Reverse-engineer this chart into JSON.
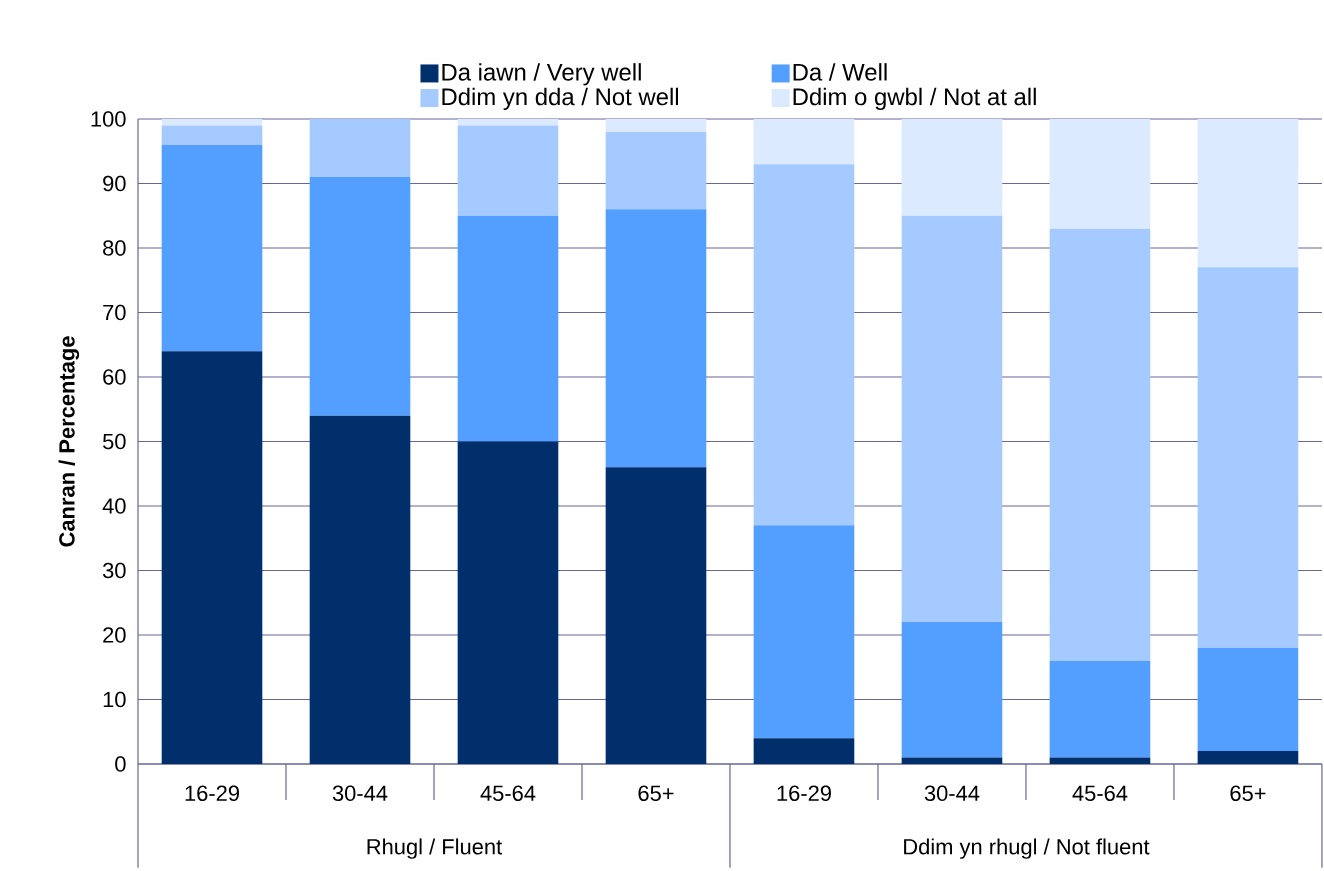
{
  "chart_data": {
    "type": "bar",
    "stacked": true,
    "ylabel": "Canran / Percentage",
    "categories": [
      "16-29",
      "30-44",
      "45-64",
      "65+",
      "16-29",
      "30-44",
      "45-64",
      "65+"
    ],
    "annotations": [
      "Rhugl / Fluent",
      "Ddim yn rhugl / Not fluent"
    ],
    "series": [
      {
        "name": "Da iawn / Very well",
        "color": "#002f6c",
        "values": [
          64,
          54,
          50,
          46,
          4,
          1,
          1,
          2
        ]
      },
      {
        "name": "Da / Well",
        "color": "#539fff",
        "values": [
          32,
          37,
          35,
          40,
          33,
          21,
          15,
          16
        ]
      },
      {
        "name": "Ddim yn dda / Not well",
        "color": "#a5caff",
        "values": [
          3,
          9,
          14,
          12,
          56,
          63,
          67,
          59
        ]
      },
      {
        "name": "Ddim o gwbl / Not at all",
        "color": "#dbeaff",
        "values": [
          1,
          0,
          1,
          2,
          7,
          15,
          17,
          23
        ]
      }
    ],
    "ylim": [
      0,
      100
    ],
    "yticks": [
      0,
      10,
      20,
      30,
      40,
      50,
      60,
      70,
      80,
      90,
      100
    ],
    "grid": "y",
    "legend": "top"
  }
}
